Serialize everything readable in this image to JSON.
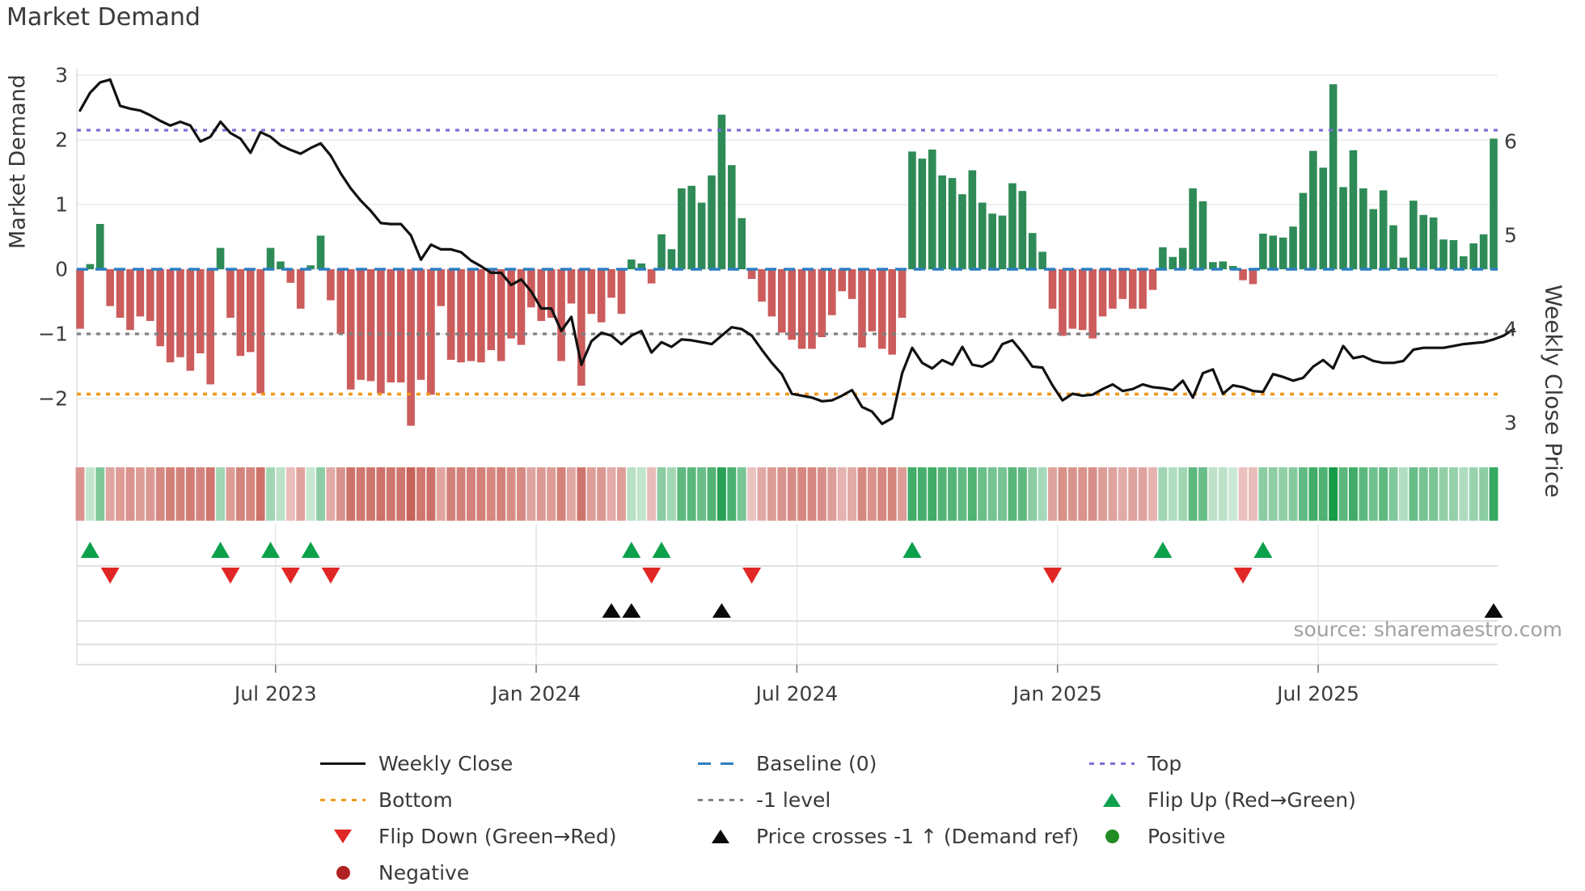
{
  "title": "Market Demand",
  "source_note": "source: sharemaestro.com",
  "axes": {
    "left_label": "Market Demand",
    "right_label": "Weekly Close Price",
    "left_tick_labels": [
      "3",
      "2",
      "1",
      "0",
      "−1",
      "−2"
    ],
    "left_tick_values": [
      3,
      2,
      1,
      0,
      -1,
      -2
    ],
    "right_tick_labels": [
      "6",
      "5",
      "4",
      "3"
    ],
    "right_tick_values": [
      6,
      5,
      4,
      3
    ],
    "x_tick_labels": [
      "Jul 2023",
      "Jan 2024",
      "Jul 2024",
      "Jan 2025",
      "Jul 2025"
    ],
    "x_tick_week_positions": [
      19.5,
      45.5,
      71.5,
      97.5,
      123.5
    ]
  },
  "chart_data": {
    "type": "combo: weekly demand bars (left axis) + weekly close price line (right axis) + signal heatmap strip + event marker rows",
    "title": "Market Demand",
    "xlabel": "",
    "ylabel_left": "Market Demand",
    "ylabel_right": "Weekly Close Price",
    "ylim_left": [
      -2.5,
      3.1
    ],
    "ylim_right": [
      2.95,
      6.93
    ],
    "grid": "horizontal only (left-axis integers)",
    "reference_lines": [
      {
        "name": "Top",
        "value": 2.15,
        "style": "dotted",
        "color": "#7b70d6"
      },
      {
        "name": "Baseline (0)",
        "value": 0,
        "style": "dashed",
        "color": "#2d7fc1"
      },
      {
        "name": "-1 level",
        "value": -1,
        "style": "dotted",
        "color": "#7f7f7f"
      },
      {
        "name": "Bottom",
        "value": -1.93,
        "style": "dotted",
        "color": "#f2991c"
      }
    ],
    "series": [
      {
        "name": "Market Demand (weekly bars)",
        "type": "bar",
        "axis": "left",
        "positive_color": "#2e8b57",
        "negative_color": "#cd5c5c",
        "values": [
          -0.92,
          0.08,
          0.7,
          -0.57,
          -0.75,
          -0.94,
          -0.73,
          -0.8,
          -1.19,
          -1.44,
          -1.36,
          -1.57,
          -1.3,
          -1.78,
          0.33,
          -0.75,
          -1.34,
          -1.28,
          -1.92,
          0.33,
          0.12,
          -0.21,
          -0.61,
          0.06,
          0.52,
          -0.48,
          -1.0,
          -1.86,
          -1.71,
          -1.73,
          -1.92,
          -1.75,
          -1.75,
          -2.42,
          -1.71,
          -1.94,
          -0.57,
          -1.4,
          -1.44,
          -1.42,
          -1.44,
          -1.25,
          -1.42,
          -1.07,
          -1.17,
          -0.59,
          -0.8,
          -0.75,
          -1.42,
          -0.53,
          -1.8,
          -0.69,
          -0.82,
          -0.44,
          -0.69,
          0.15,
          0.09,
          -0.22,
          0.54,
          0.31,
          1.25,
          1.29,
          1.03,
          1.45,
          2.39,
          1.61,
          0.79,
          -0.15,
          -0.5,
          -0.73,
          -0.98,
          -1.09,
          -1.23,
          -1.23,
          -1.05,
          -0.71,
          -0.34,
          -0.46,
          -1.21,
          -0.96,
          -1.23,
          -1.32,
          -0.75,
          1.82,
          1.71,
          1.85,
          1.45,
          1.41,
          1.16,
          1.53,
          1.03,
          0.86,
          0.83,
          1.33,
          1.21,
          0.56,
          0.27,
          -0.61,
          -1.03,
          -0.92,
          -0.94,
          -1.07,
          -0.73,
          -0.61,
          -0.46,
          -0.61,
          -0.61,
          -0.32,
          0.34,
          0.19,
          0.33,
          1.25,
          1.05,
          0.11,
          0.12,
          0.05,
          -0.17,
          -0.23,
          0.55,
          0.52,
          0.49,
          0.66,
          1.18,
          1.83,
          1.57,
          2.86,
          1.27,
          1.84,
          1.25,
          0.93,
          1.22,
          0.68,
          0.18,
          1.06,
          0.84,
          0.8,
          0.46,
          0.45,
          0.2,
          0.4,
          0.54,
          2.02
        ]
      },
      {
        "name": "Weekly Close",
        "type": "line",
        "axis": "right",
        "color": "#111111",
        "values": [
          6.33,
          6.52,
          6.63,
          6.66,
          6.38,
          6.35,
          6.33,
          6.28,
          6.22,
          6.17,
          6.21,
          6.17,
          6.0,
          6.05,
          6.21,
          6.09,
          6.03,
          5.88,
          6.1,
          6.05,
          5.96,
          5.91,
          5.87,
          5.93,
          5.98,
          5.85,
          5.66,
          5.5,
          5.37,
          5.26,
          5.13,
          5.12,
          5.12,
          5.0,
          4.74,
          4.9,
          4.85,
          4.85,
          4.82,
          4.73,
          4.67,
          4.6,
          4.6,
          4.47,
          4.53,
          4.4,
          4.22,
          4.22,
          3.98,
          4.13,
          3.62,
          3.87,
          3.96,
          3.93,
          3.84,
          3.93,
          3.98,
          3.75,
          3.86,
          3.81,
          3.89,
          3.88,
          3.86,
          3.84,
          3.93,
          4.02,
          4.0,
          3.93,
          3.78,
          3.64,
          3.52,
          3.31,
          3.29,
          3.27,
          3.23,
          3.24,
          3.29,
          3.35,
          3.17,
          3.12,
          2.99,
          3.05,
          3.53,
          3.8,
          3.64,
          3.58,
          3.67,
          3.62,
          3.81,
          3.62,
          3.6,
          3.66,
          3.84,
          3.88,
          3.75,
          3.6,
          3.59,
          3.4,
          3.24,
          3.31,
          3.29,
          3.3,
          3.36,
          3.41,
          3.34,
          3.36,
          3.41,
          3.38,
          3.37,
          3.35,
          3.45,
          3.27,
          3.53,
          3.57,
          3.31,
          3.4,
          3.38,
          3.34,
          3.33,
          3.52,
          3.49,
          3.45,
          3.48,
          3.6,
          3.67,
          3.58,
          3.82,
          3.69,
          3.71,
          3.66,
          3.64,
          3.64,
          3.66,
          3.78,
          3.8,
          3.8,
          3.8,
          3.82,
          3.84,
          3.85,
          3.86,
          3.89,
          3.93,
          4.0
        ]
      }
    ],
    "signals": {
      "flip_up_weeks": [
        1,
        14,
        19,
        23,
        55,
        58,
        83,
        108,
        118
      ],
      "flip_down_weeks": [
        3,
        15,
        21,
        25,
        57,
        67,
        97,
        116
      ],
      "price_cross_minus1_weeks": [
        53,
        55,
        64,
        141
      ]
    },
    "heatmap_strip": {
      "derived_from": "bar values (sign + magnitude)",
      "positive_dark": "#169a47",
      "positive_light": "#e6f4e9",
      "negative_dark": "#c4574e",
      "negative_light": "#f6e3e1"
    }
  },
  "legend": {
    "columns": [
      [
        {
          "label": "Weekly Close",
          "swatch": "line-solid-black"
        },
        {
          "label": "Bottom",
          "swatch": "dotted-orange"
        },
        {
          "label": "Flip Down (Green→Red)",
          "swatch": "triangle-down-red"
        },
        {
          "label": "Negative",
          "swatch": "circle-darkred"
        }
      ],
      [
        {
          "label": "Baseline (0)",
          "swatch": "dashed-blue"
        },
        {
          "label": "-1 level",
          "swatch": "dotted-gray"
        },
        {
          "label": "Price crosses -1 ↑ (Demand ref)",
          "swatch": "triangle-up-black"
        }
      ],
      [
        {
          "label": "Top",
          "swatch": "dotted-purple"
        },
        {
          "label": "Flip Up (Red→Green)",
          "swatch": "triangle-up-green"
        },
        {
          "label": "Positive",
          "swatch": "circle-green"
        }
      ]
    ]
  },
  "colors": {
    "bar_positive": "#2e8b57",
    "bar_negative": "#cd5c5c",
    "price_line": "#111111",
    "baseline": "#2d7fc1",
    "top_line": "#7b70d6",
    "minus1_line": "#7f7f7f",
    "bottom_line": "#f2991c",
    "flip_up": "#0da14c",
    "flip_down": "#e12726",
    "price_cross": "#0a0a0a",
    "negative_dot": "#b22222",
    "positive_dot": "#228b22",
    "gridline": "#eaeaef",
    "panel_line": "#d7d7d7",
    "tick_text": "#3c3c3c",
    "source_text": "#a2a2a2"
  }
}
